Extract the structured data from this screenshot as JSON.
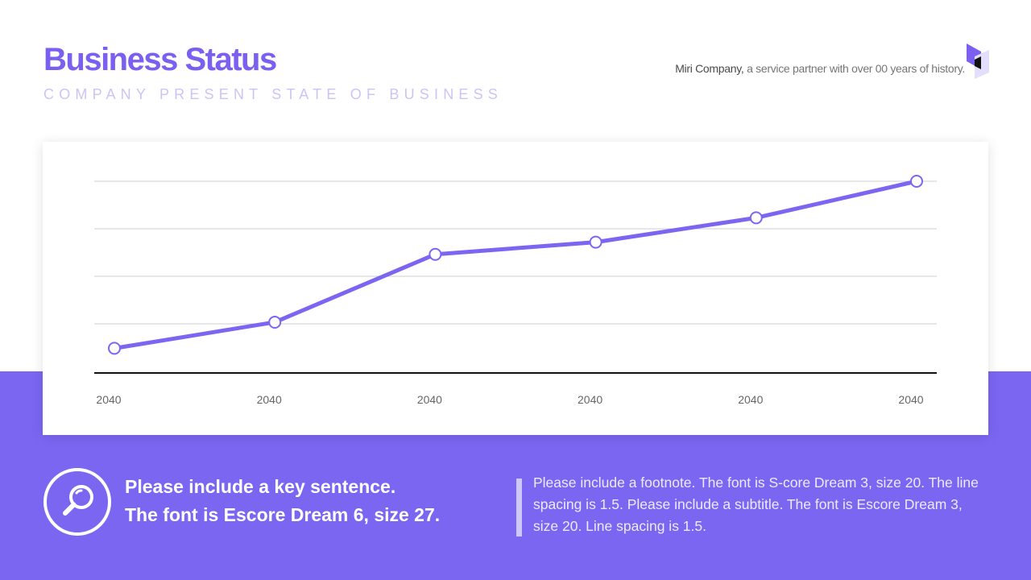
{
  "header": {
    "title": "Business Status",
    "subtitle": "COMPANY PRESENT STATE OF BUSINESS",
    "company_name": "Miri Company,",
    "company_tagline": " a service partner with over 00 years of history."
  },
  "chart_data": {
    "type": "line",
    "title": "",
    "xlabel": "",
    "ylabel": "",
    "categories": [
      "2040",
      "2040",
      "2040",
      "2040",
      "2040",
      "2040"
    ],
    "series": [
      {
        "values": [
          4,
          19,
          58,
          65,
          79,
          100
        ]
      }
    ],
    "ylim": [
      0,
      100
    ],
    "y_axis_labels_shown": false,
    "grid": true,
    "line_color": "#7b66f2",
    "marker_fill": "#ffffff"
  },
  "key_sentence": {
    "line1": "Please include a key sentence.",
    "line2": "The font is Escore Dream 6, size 27."
  },
  "footnote": {
    "text": "Please include a footnote. The font is S-core Dream 3, size 20. The line spacing is 1.5. Please include a subtitle. The font is Escore Dream 3, size 20. Line spacing is 1.5."
  },
  "colors": {
    "accent": "#7b66f2",
    "title": "#7b5ff0",
    "subtitle": "#cbc4f6",
    "band": "#7b66f2"
  },
  "icons": {
    "key_sentence_icon": "magnifier-icon",
    "corner_logo": "cube-logo-icon"
  }
}
